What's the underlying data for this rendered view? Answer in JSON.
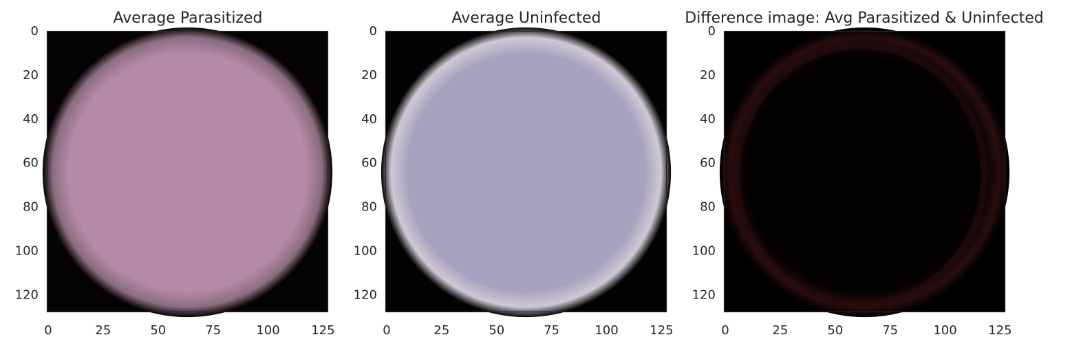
{
  "chart_data": [
    {
      "type": "heatmap",
      "title": "Average Parasitized",
      "xlabel": "",
      "ylabel": "",
      "xlim": [
        0,
        128
      ],
      "ylim": [
        128,
        0
      ],
      "x_ticks": [
        0,
        25,
        50,
        75,
        100,
        125
      ],
      "y_ticks": [
        0,
        20,
        40,
        60,
        80,
        100,
        120
      ],
      "grid": false,
      "image_shape": [
        128,
        128,
        3
      ],
      "image_summary": "average cell image; round cell occupying most of the frame on a dark background",
      "cell_color": "#b48aa7",
      "edge_color": "#8b6d7f",
      "background_color": "#050303"
    },
    {
      "type": "heatmap",
      "title": "Average Uninfected",
      "xlabel": "",
      "ylabel": "",
      "xlim": [
        0,
        128
      ],
      "ylim": [
        128,
        0
      ],
      "x_ticks": [
        0,
        25,
        50,
        75,
        100,
        125
      ],
      "y_ticks": [
        0,
        20,
        40,
        60,
        80,
        100,
        120
      ],
      "grid": false,
      "image_shape": [
        128,
        128,
        3
      ],
      "image_summary": "average cell image; round cell occupying most of the frame on a dark background",
      "cell_color": "#a8a2bf",
      "edge_color": "#cfc9d4",
      "background_color": "#040304"
    },
    {
      "type": "heatmap",
      "title": "Difference image: Avg Parasitized & Uninfected",
      "xlabel": "",
      "ylabel": "",
      "xlim": [
        0,
        128
      ],
      "ylim": [
        128,
        0
      ],
      "x_ticks": [
        0,
        25,
        50,
        75,
        100,
        125
      ],
      "y_ticks": [
        0,
        20,
        40,
        60,
        80,
        100,
        120
      ],
      "grid": false,
      "image_shape": [
        128,
        128,
        3
      ],
      "image_summary": "near-black difference image with a faint dark-red ring at the cell boundary",
      "cell_color": "#030101",
      "edge_color": "#2a0d0e",
      "background_color": "#010000"
    }
  ]
}
